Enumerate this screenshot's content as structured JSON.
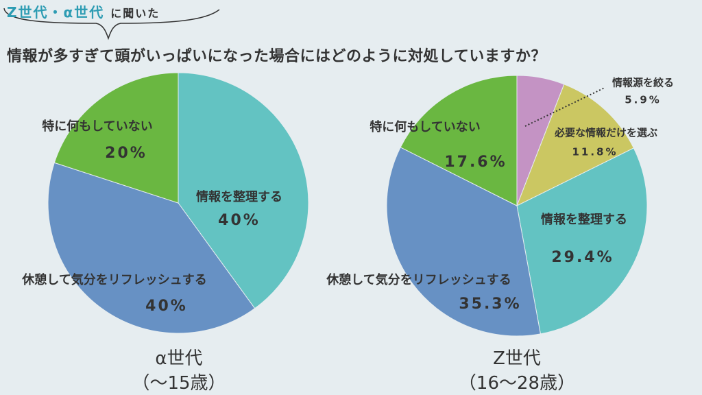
{
  "header": {
    "tag_highlight": "Z世代・α世代",
    "tag_suffix": "に聞いた",
    "question": "情報が多すぎて頭がいっぱいになった場合にはどのように対処していますか？"
  },
  "colors": {
    "teal": "#63c3c2",
    "blue": "#6791c4",
    "green": "#6ab741",
    "yellow": "#cbc762",
    "pink": "#c493c4",
    "accent": "#2d9cb3"
  },
  "chart_data": [
    {
      "type": "pie",
      "title": "α世代",
      "subtitle": "（〜15歳）",
      "slices": [
        {
          "label": "情報を整理する",
          "value": 40,
          "value_label": "40%",
          "color": "#63c3c2"
        },
        {
          "label": "休憩して気分をリフレッシュする",
          "value": 40,
          "value_label": "40%",
          "color": "#6791c4"
        },
        {
          "label": "特に何もしていない",
          "value": 20,
          "value_label": "20%",
          "color": "#6ab741"
        }
      ]
    },
    {
      "type": "pie",
      "title": "Z世代",
      "subtitle": "（16〜28歳）",
      "slices": [
        {
          "label": "情報源を絞る",
          "value": 5.9,
          "value_label": "5.9%",
          "color": "#c493c4"
        },
        {
          "label": "必要な情報だけを選ぶ",
          "value": 11.8,
          "value_label": "11.8%",
          "color": "#cbc762"
        },
        {
          "label": "情報を整理する",
          "value": 29.4,
          "value_label": "29.4%",
          "color": "#63c3c2"
        },
        {
          "label": "休憩して気分をリフレッシュする",
          "value": 35.3,
          "value_label": "35.3%",
          "color": "#6791c4"
        },
        {
          "label": "特に何もしていない",
          "value": 17.6,
          "value_label": "17.6%",
          "color": "#6ab741"
        }
      ]
    }
  ]
}
